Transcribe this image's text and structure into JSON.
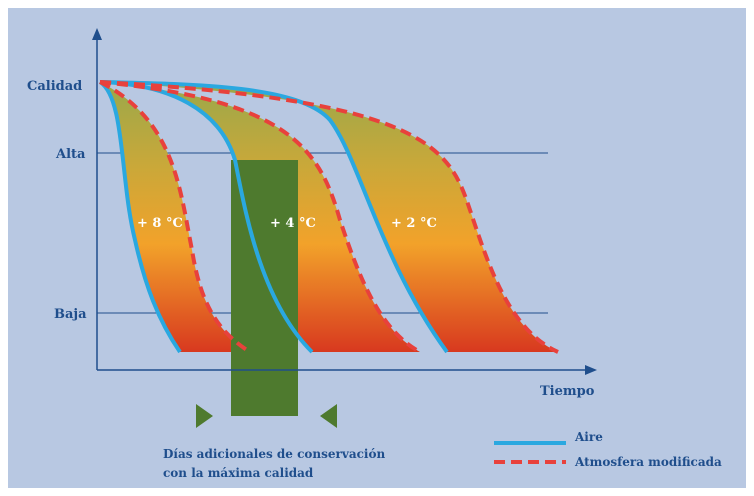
{
  "axes": {
    "y_label": "Calidad",
    "x_label": "Tiempo",
    "levels": [
      {
        "label": "Alta"
      },
      {
        "label": "Baja"
      }
    ]
  },
  "bands": [
    {
      "label": "+ 8 °C"
    },
    {
      "label": "+ 4 °C"
    },
    {
      "label": "+ 2 °C"
    }
  ],
  "annotation": {
    "line1": "Días adicionales de conservación",
    "line2": "con la máxima calidad"
  },
  "legend": {
    "items": [
      {
        "label": "Aire",
        "style": "solid",
        "color": "#2aa8e0"
      },
      {
        "label": "Atmosfera modificada",
        "style": "dashed",
        "color": "#e8413c"
      }
    ]
  },
  "colors": {
    "background": "#b8c8e2",
    "axis": "#1f4e8c",
    "bar": "#4e7a2e",
    "band_top": "#9aa84a",
    "band_mid": "#f2a22a",
    "band_bottom": "#d8391f"
  }
}
